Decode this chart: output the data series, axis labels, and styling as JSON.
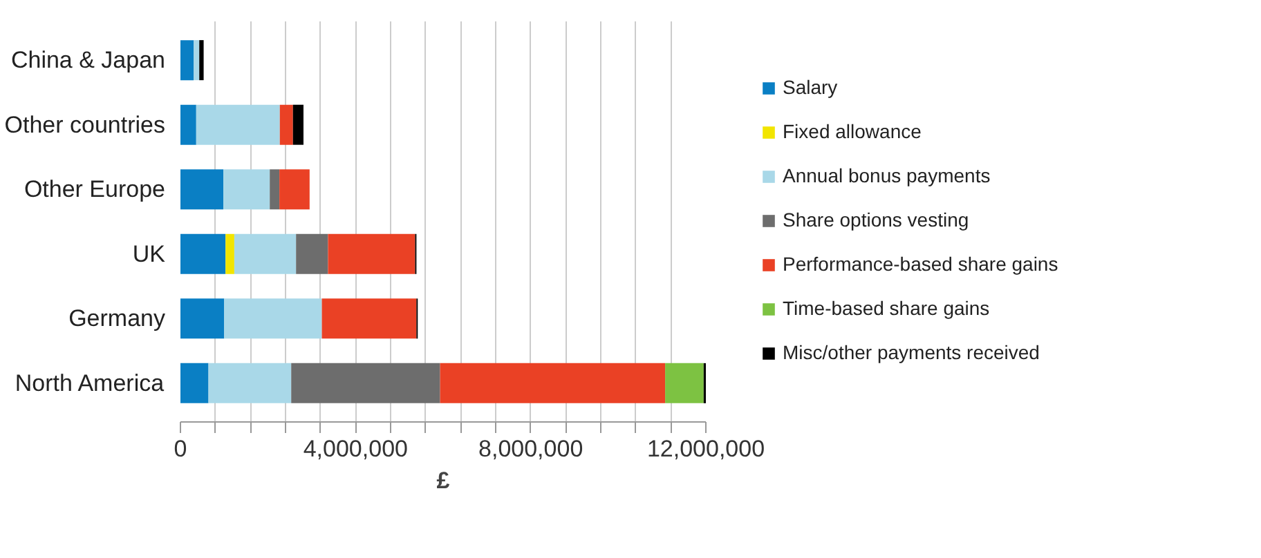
{
  "chart_data": {
    "type": "bar",
    "orientation": "horizontal",
    "stacked": true,
    "xlabel": "£",
    "categories": [
      "China & Japan",
      "Other countries",
      "Other Europe",
      "UK",
      "Germany",
      "North America"
    ],
    "series": [
      {
        "name": "Salary",
        "color": "#0a7fc4",
        "values": [
          300000,
          360000,
          980000,
          1030000,
          1000000,
          640000
        ]
      },
      {
        "name": "Fixed allowance",
        "color": "#f2e500",
        "values": [
          null,
          null,
          null,
          200000,
          null,
          null
        ]
      },
      {
        "name": "Annual bonus payments",
        "color": "#a9d8e8",
        "values": [
          130000,
          1910000,
          1060000,
          1410000,
          2230000,
          1890000
        ]
      },
      {
        "name": "Share options vesting",
        "color": "#6d6d6d",
        "values": [
          null,
          null,
          220000,
          730000,
          null,
          3400000
        ]
      },
      {
        "name": "Performance-based share gains",
        "color": "#ea4125",
        "values": [
          null,
          300000,
          690000,
          1990000,
          2160000,
          5140000
        ]
      },
      {
        "name": "Time-based share gains",
        "color": "#7dc242",
        "values": [
          null,
          null,
          null,
          null,
          null,
          880000
        ]
      },
      {
        "name": "Misc/other payments received",
        "color": "#000000",
        "values": [
          100000,
          240000,
          null,
          30000,
          30000,
          50000
        ]
      }
    ],
    "xlim": [
      0,
      12000000
    ],
    "xticks": [
      {
        "value": 0,
        "label": "0"
      },
      {
        "value": 800000,
        "label": null
      },
      {
        "value": 1600000,
        "label": null
      },
      {
        "value": 2400000,
        "label": null
      },
      {
        "value": 3200000,
        "label": null
      },
      {
        "value": 4000000,
        "label": "4,000,000"
      },
      {
        "value": 4800000,
        "label": null
      },
      {
        "value": 5600000,
        "label": null
      },
      {
        "value": 6400000,
        "label": null
      },
      {
        "value": 7200000,
        "label": null
      },
      {
        "value": 8000000,
        "label": "8,000,000"
      },
      {
        "value": 8800000,
        "label": null
      },
      {
        "value": 9600000,
        "label": null
      },
      {
        "value": 10400000,
        "label": null
      },
      {
        "value": 11200000,
        "label": null
      },
      {
        "value": 12000000,
        "label": "12,000,000"
      }
    ],
    "grid": "x",
    "legend": "right"
  }
}
